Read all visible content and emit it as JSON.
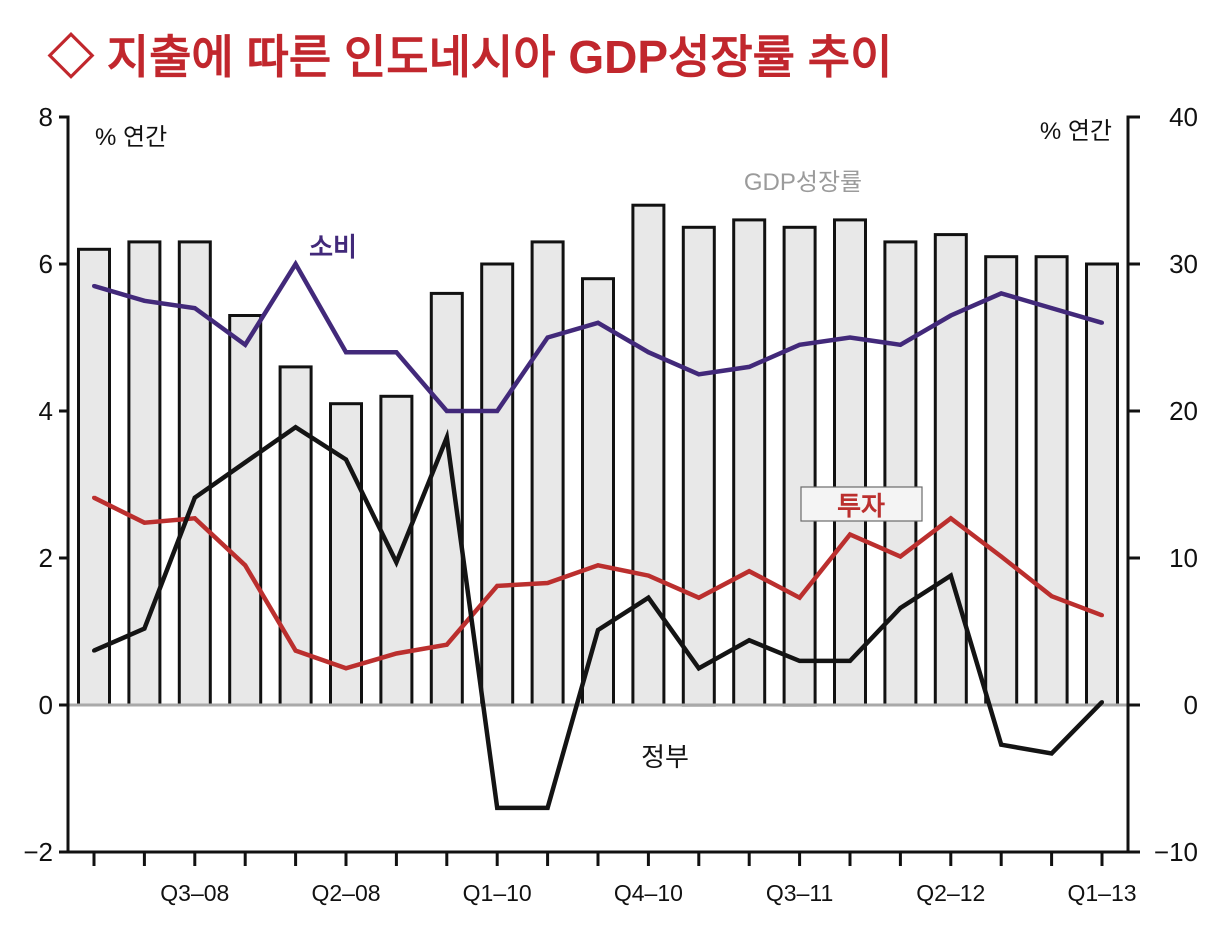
{
  "colors": {
    "title": "#c1272d",
    "zero_line": "#a9a9a9",
    "axis": "#111111",
    "bar_border": "#111111",
    "gdp_label_text": "#9b9b9b",
    "label_box_fill": "#f4f4f4",
    "label_box_border": "#6b6b6b"
  },
  "chart_data": {
    "type": "bar",
    "title": "◇ 지출에 따른 인도네시아 GDP성장률 추이",
    "categories": [
      "",
      "",
      "Q3–08",
      "",
      "",
      "Q2–08",
      "",
      "",
      "Q1–10",
      "",
      "",
      "Q4–10",
      "",
      "",
      "Q3–11",
      "",
      "",
      "Q2–12",
      "",
      "",
      "Q1–13"
    ],
    "left_axis": {
      "label": "% 연간",
      "range": [
        -2,
        8
      ],
      "ticks": [
        8,
        6,
        4,
        2,
        0,
        -2
      ],
      "tick_labels": [
        "8",
        "6",
        "4",
        "2",
        "0",
        "−2"
      ]
    },
    "right_axis": {
      "label": "% 연간",
      "range": [
        -10,
        40
      ],
      "ticks": [
        40,
        30,
        20,
        10,
        0,
        -10
      ],
      "tick_labels": [
        "40",
        "30",
        "20",
        "10",
        "0",
        "−10"
      ]
    },
    "grid": false,
    "zero_line": true,
    "series": [
      {
        "name": "GDP성장률",
        "type": "bar",
        "axis": "left",
        "color": "#e8e8e8",
        "values": [
          6.2,
          6.3,
          6.3,
          5.3,
          4.6,
          4.1,
          4.2,
          5.6,
          6.0,
          6.3,
          5.8,
          6.8,
          6.5,
          6.6,
          6.5,
          6.6,
          6.3,
          6.4,
          6.1,
          6.1,
          6.0
        ]
      },
      {
        "name": "소비",
        "type": "line",
        "axis": "left",
        "color": "#42297a",
        "values": [
          5.7,
          5.5,
          5.4,
          4.9,
          6.0,
          4.8,
          4.8,
          4.0,
          4.0,
          5.0,
          5.2,
          4.8,
          4.5,
          4.6,
          4.9,
          5.0,
          4.9,
          5.3,
          5.6,
          5.4,
          5.2
        ]
      },
      {
        "name": "투자",
        "type": "line",
        "axis": "right",
        "color": "#bb2f2e",
        "values": [
          14.1,
          12.4,
          12.7,
          9.5,
          3.7,
          2.5,
          3.5,
          4.1,
          8.1,
          8.3,
          9.5,
          8.8,
          7.3,
          9.1,
          7.3,
          11.6,
          10.1,
          12.7,
          10.1,
          7.4,
          6.1
        ]
      },
      {
        "name": "정부",
        "type": "line",
        "axis": "right",
        "color": "#141414",
        "values": [
          3.7,
          5.2,
          14.1,
          16.5,
          18.9,
          16.7,
          9.7,
          18.2,
          -7.0,
          -7.0,
          5.1,
          7.3,
          2.5,
          4.4,
          3.0,
          3.0,
          6.6,
          8.8,
          -2.7,
          -3.3,
          0.2
        ]
      }
    ]
  }
}
